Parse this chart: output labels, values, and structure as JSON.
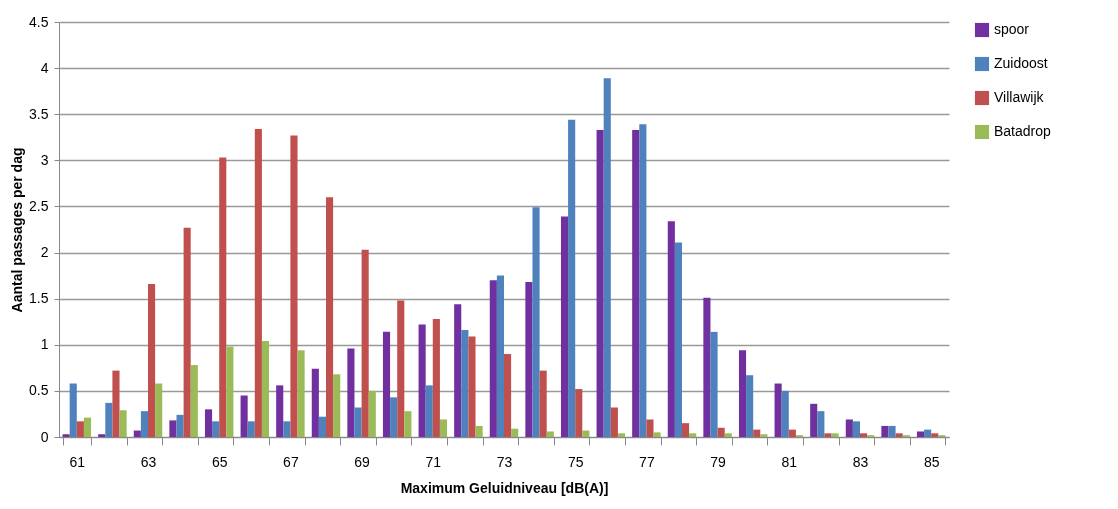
{
  "chart_data": {
    "type": "bar",
    "xlabel": "Maximum Geluidniveau  [dB(A)]",
    "ylabel": "Aantal passages  per dag",
    "categories": [
      "61",
      null,
      "63",
      null,
      "65",
      null,
      "67",
      null,
      "69",
      null,
      "71",
      null,
      "73",
      null,
      "75",
      null,
      "77",
      null,
      "79",
      null,
      "81",
      null,
      "83",
      null,
      "85"
    ],
    "series": [
      {
        "name": "spoor",
        "color": "#7030a0",
        "values": [
          0.03,
          0.03,
          0.07,
          0.18,
          0.3,
          0.45,
          0.56,
          0.74,
          0.96,
          1.14,
          1.22,
          1.44,
          1.7,
          1.68,
          2.39,
          3.33,
          3.33,
          2.34,
          1.51,
          0.94,
          0.58,
          0.36,
          0.19,
          0.12,
          0.06
        ]
      },
      {
        "name": "Zuidoost",
        "color": "#4f81bd",
        "values": [
          0.58,
          0.37,
          0.28,
          0.24,
          0.17,
          0.17,
          0.17,
          0.22,
          0.32,
          0.43,
          0.56,
          1.16,
          1.75,
          2.49,
          3.44,
          3.89,
          3.39,
          2.11,
          1.14,
          0.67,
          0.5,
          0.28,
          0.17,
          0.12,
          0.08
        ]
      },
      {
        "name": "Villawijk",
        "color": "#c0504d",
        "values": [
          0.17,
          0.72,
          1.66,
          2.27,
          3.03,
          3.34,
          3.27,
          2.6,
          2.03,
          1.48,
          1.28,
          1.09,
          0.9,
          0.72,
          0.52,
          0.32,
          0.19,
          0.15,
          0.1,
          0.08,
          0.08,
          0.04,
          0.04,
          0.04,
          0.04
        ]
      },
      {
        "name": "Batadrop",
        "color": "#9bbb59",
        "values": [
          0.21,
          0.29,
          0.58,
          0.78,
          0.98,
          1.04,
          0.94,
          0.68,
          0.5,
          0.28,
          0.19,
          0.12,
          0.09,
          0.06,
          0.07,
          0.04,
          0.05,
          0.04,
          0.04,
          0.03,
          0.02,
          0.04,
          0.02,
          0.02,
          0.02
        ]
      }
    ],
    "ylim": [
      0,
      4.5
    ],
    "yticks": [
      0,
      0.5,
      1,
      1.5,
      2,
      2.5,
      3,
      3.5,
      4,
      4.5
    ],
    "grid": "y",
    "legend": "right"
  }
}
